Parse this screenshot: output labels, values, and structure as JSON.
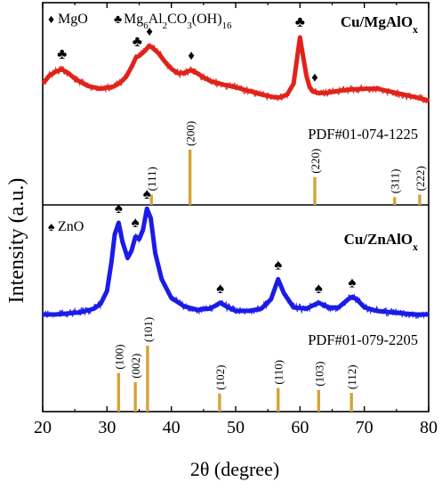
{
  "chart_data": {
    "type": "line",
    "xlabel": "2θ (degree)",
    "ylabel": "Intensity (a.u.)",
    "xlim": [
      20,
      80
    ],
    "xticks": [
      "20",
      "30",
      "40",
      "50",
      "60",
      "70",
      "80"
    ],
    "panels": [
      {
        "sample_label": "Cu/MgAlOx",
        "sample_color": "#e0231b",
        "legend": [
          {
            "symbol": "♦",
            "text": "MgO"
          },
          {
            "symbol": "♣",
            "text": "Mg6Al2CO3(OH)16"
          }
        ],
        "pattern": {
          "x": [
            20.2,
            21,
            22,
            23,
            24,
            25,
            27,
            29,
            31,
            32,
            33,
            34,
            34.5,
            35,
            36,
            36.5,
            37,
            38,
            39,
            40,
            41,
            42,
            43,
            44,
            45,
            46,
            48,
            50,
            52,
            54,
            56,
            57,
            58,
            59,
            59.6,
            60,
            60.4,
            61,
            61.5,
            62,
            63,
            64,
            66,
            68,
            70,
            72,
            74,
            76,
            78,
            79.8
          ],
          "y": [
            0.37,
            0.46,
            0.52,
            0.55,
            0.5,
            0.42,
            0.32,
            0.28,
            0.31,
            0.36,
            0.45,
            0.62,
            0.72,
            0.74,
            0.82,
            0.88,
            0.86,
            0.78,
            0.66,
            0.56,
            0.5,
            0.5,
            0.54,
            0.5,
            0.44,
            0.39,
            0.34,
            0.3,
            0.25,
            0.2,
            0.16,
            0.16,
            0.2,
            0.35,
            0.74,
            1.0,
            0.78,
            0.46,
            0.3,
            0.24,
            0.22,
            0.22,
            0.25,
            0.27,
            0.28,
            0.28,
            0.24,
            0.2,
            0.16,
            0.12
          ]
        },
        "annotations": [
          {
            "x": 23,
            "symbol": "♣"
          },
          {
            "x": 34.7,
            "symbol": "♣"
          },
          {
            "x": 36.6,
            "symbol": "♦"
          },
          {
            "x": 43.1,
            "symbol": "♦"
          },
          {
            "x": 60.0,
            "symbol": "♣"
          },
          {
            "x": 62.3,
            "symbol": "♦"
          }
        ],
        "reference": {
          "label": "PDF#01-074-1225",
          "peaks": [
            {
              "x": 36.9,
              "hkl": "(111)",
              "intensity": 0.1
            },
            {
              "x": 42.9,
              "hkl": "(200)",
              "intensity": 1.0
            },
            {
              "x": 62.3,
              "hkl": "(220)",
              "intensity": 0.45
            },
            {
              "x": 74.7,
              "hkl": "(311)",
              "intensity": 0.05
            },
            {
              "x": 78.6,
              "hkl": "(222)",
              "intensity": 0.1
            }
          ]
        }
      },
      {
        "sample_label": "Cu/ZnAlOx",
        "sample_color": "#1c1ce8",
        "legend": [
          {
            "symbol": "♠",
            "text": "ZnO"
          }
        ],
        "pattern": {
          "x": [
            20.2,
            22,
            24,
            26,
            28,
            29,
            30,
            30.7,
            31.2,
            31.8,
            32.4,
            33.2,
            33.8,
            34.4,
            35,
            35.6,
            36.2,
            36.8,
            37.5,
            38.5,
            40,
            42,
            44,
            46,
            47,
            47.6,
            48.5,
            50,
            52,
            54,
            55.5,
            56.6,
            57.5,
            59,
            61,
            62.9,
            64.5,
            66,
            67.5,
            68.2,
            69,
            70,
            72,
            74,
            76,
            78,
            79.8
          ],
          "y": [
            0.0,
            0.0,
            0.01,
            0.02,
            0.05,
            0.09,
            0.2,
            0.45,
            0.68,
            0.78,
            0.62,
            0.48,
            0.54,
            0.66,
            0.64,
            0.72,
            0.9,
            0.82,
            0.52,
            0.3,
            0.14,
            0.07,
            0.04,
            0.05,
            0.08,
            0.1,
            0.07,
            0.03,
            0.03,
            0.05,
            0.13,
            0.3,
            0.18,
            0.06,
            0.05,
            0.1,
            0.06,
            0.06,
            0.13,
            0.15,
            0.12,
            0.06,
            0.03,
            0.02,
            0.01,
            0.0,
            0.0
          ]
        },
        "annotations": [
          {
            "x": 31.8,
            "symbol": "♠"
          },
          {
            "x": 34.4,
            "symbol": "♠"
          },
          {
            "x": 36.2,
            "symbol": "♠"
          },
          {
            "x": 47.6,
            "symbol": "♠"
          },
          {
            "x": 56.6,
            "symbol": "♠"
          },
          {
            "x": 62.9,
            "symbol": "♠"
          },
          {
            "x": 68.1,
            "symbol": "♠"
          }
        ],
        "reference": {
          "label": "PDF#01-079-2205",
          "peaks": [
            {
              "x": 31.8,
              "hkl": "(100)",
              "intensity": 0.55
            },
            {
              "x": 34.4,
              "hkl": "(002)",
              "intensity": 0.4
            },
            {
              "x": 36.3,
              "hkl": "(101)",
              "intensity": 1.0
            },
            {
              "x": 47.5,
              "hkl": "(102)",
              "intensity": 0.21
            },
            {
              "x": 56.6,
              "hkl": "(110)",
              "intensity": 0.3
            },
            {
              "x": 62.9,
              "hkl": "(103)",
              "intensity": 0.27
            },
            {
              "x": 68.0,
              "hkl": "(112)",
              "intensity": 0.22
            }
          ]
        }
      }
    ]
  }
}
